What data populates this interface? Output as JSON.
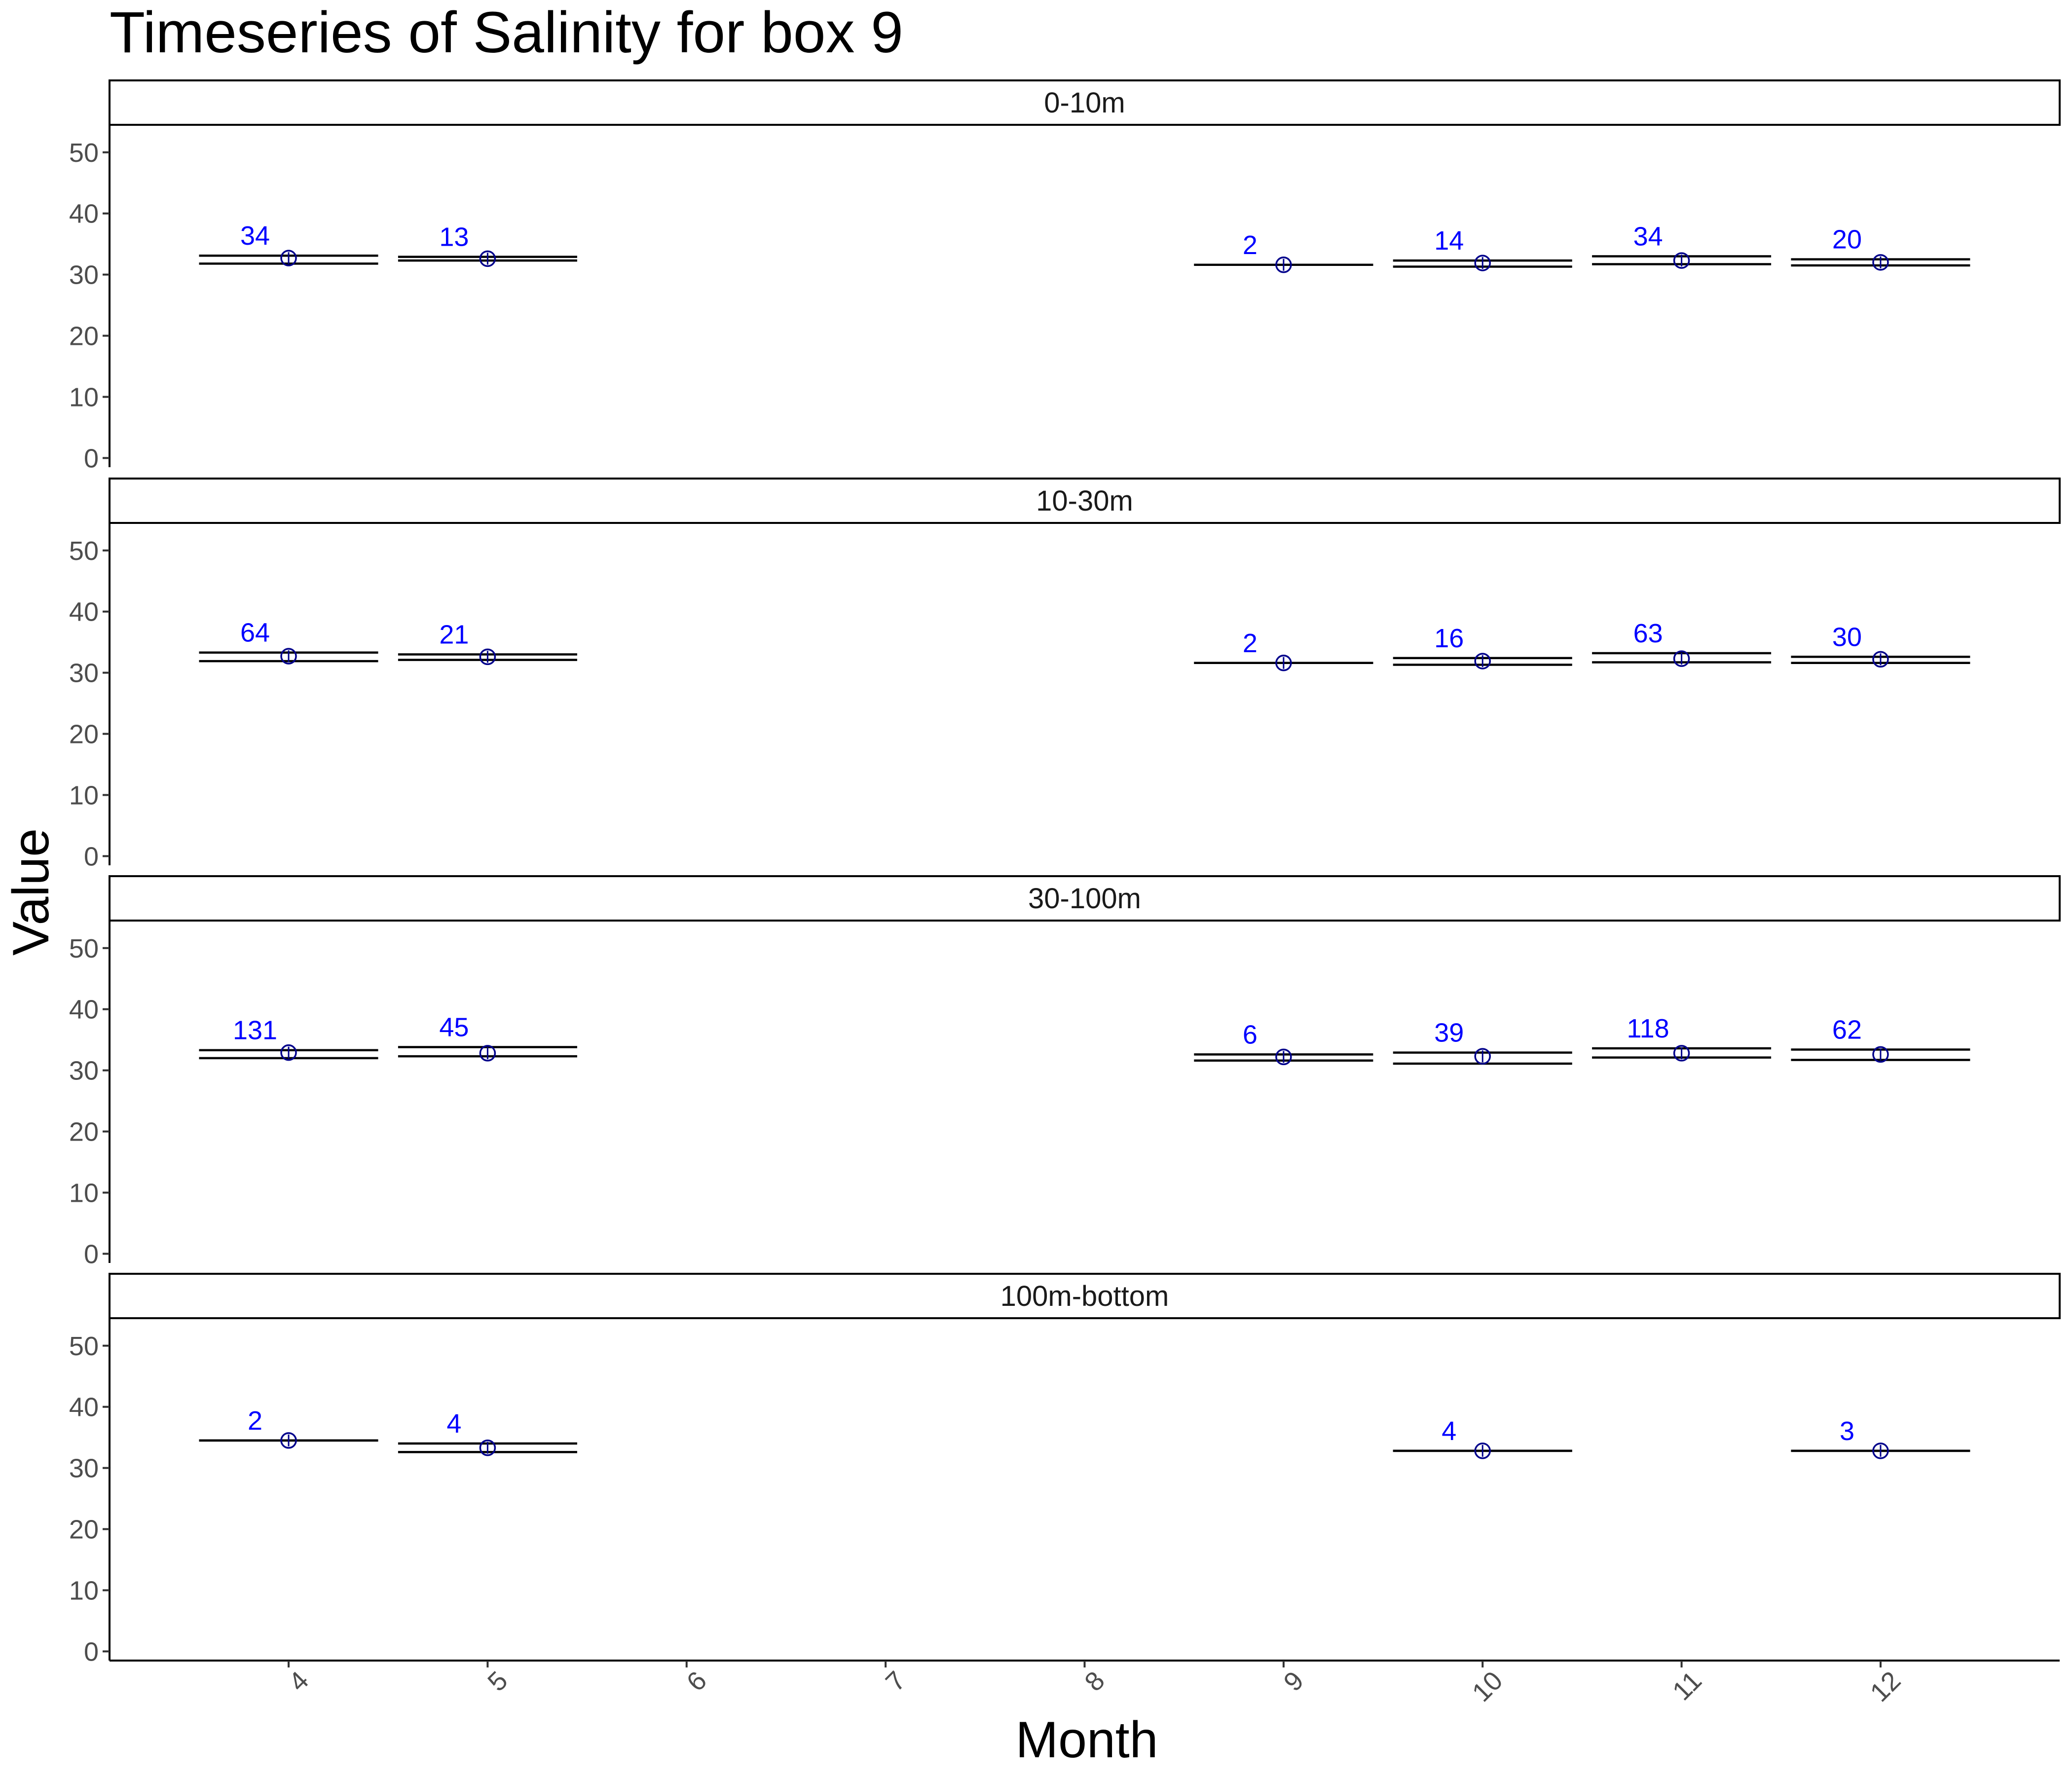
{
  "chart_data": {
    "type": "scatter",
    "title": "Timeseries of  Salinity  for box  9",
    "xlabel": "Month",
    "ylabel": "Value",
    "x_ticks": [
      4,
      5,
      6,
      7,
      8,
      9,
      10,
      11,
      12
    ],
    "y_ticks": [
      0,
      10,
      20,
      30,
      40,
      50
    ],
    "xlim": [
      3.1,
      12.9
    ],
    "ylim": [
      -1.5,
      54.5
    ],
    "grid": false,
    "legend": "none",
    "count_color": "#0000ff",
    "point_color": "#00008b",
    "panels": [
      {
        "label": "0-10m",
        "points": [
          {
            "month": 4,
            "mean": 32.7,
            "lower": 31.8,
            "upper": 33.1,
            "n": "34"
          },
          {
            "month": 5,
            "mean": 32.6,
            "lower": 32.3,
            "upper": 32.9,
            "n": "13"
          },
          {
            "month": 9,
            "mean": 31.6,
            "lower": 31.6,
            "upper": 31.6,
            "n": "2"
          },
          {
            "month": 10,
            "mean": 31.9,
            "lower": 31.3,
            "upper": 32.3,
            "n": "14"
          },
          {
            "month": 11,
            "mean": 32.3,
            "lower": 31.7,
            "upper": 33.0,
            "n": "34"
          },
          {
            "month": 12,
            "mean": 32.0,
            "lower": 31.5,
            "upper": 32.5,
            "n": "20"
          }
        ]
      },
      {
        "label": "10-30m",
        "points": [
          {
            "month": 4,
            "mean": 32.7,
            "lower": 31.9,
            "upper": 33.3,
            "n": "64"
          },
          {
            "month": 5,
            "mean": 32.6,
            "lower": 32.1,
            "upper": 33.0,
            "n": "21"
          },
          {
            "month": 9,
            "mean": 31.6,
            "lower": 31.6,
            "upper": 31.6,
            "n": "2"
          },
          {
            "month": 10,
            "mean": 31.9,
            "lower": 31.3,
            "upper": 32.4,
            "n": "16"
          },
          {
            "month": 11,
            "mean": 32.3,
            "lower": 31.7,
            "upper": 33.2,
            "n": "63"
          },
          {
            "month": 12,
            "mean": 32.2,
            "lower": 31.6,
            "upper": 32.6,
            "n": "30"
          }
        ]
      },
      {
        "label": "30-100m",
        "points": [
          {
            "month": 4,
            "mean": 32.9,
            "lower": 32.0,
            "upper": 33.3,
            "n": "131"
          },
          {
            "month": 5,
            "mean": 32.8,
            "lower": 32.3,
            "upper": 33.8,
            "n": "45"
          },
          {
            "month": 9,
            "mean": 32.2,
            "lower": 31.6,
            "upper": 32.6,
            "n": "6"
          },
          {
            "month": 10,
            "mean": 32.3,
            "lower": 31.1,
            "upper": 32.9,
            "n": "39"
          },
          {
            "month": 11,
            "mean": 32.8,
            "lower": 32.1,
            "upper": 33.6,
            "n": "118"
          },
          {
            "month": 12,
            "mean": 32.6,
            "lower": 31.7,
            "upper": 33.4,
            "n": "62"
          }
        ]
      },
      {
        "label": "100m-bottom",
        "points": [
          {
            "month": 4,
            "mean": 34.5,
            "lower": 34.5,
            "upper": 34.5,
            "n": "2"
          },
          {
            "month": 5,
            "mean": 33.3,
            "lower": 32.6,
            "upper": 34.0,
            "n": "4"
          },
          {
            "month": 10,
            "mean": 32.8,
            "lower": 32.8,
            "upper": 32.8,
            "n": "4"
          },
          {
            "month": 12,
            "mean": 32.8,
            "lower": 32.8,
            "upper": 32.8,
            "n": "3"
          }
        ]
      }
    ]
  }
}
